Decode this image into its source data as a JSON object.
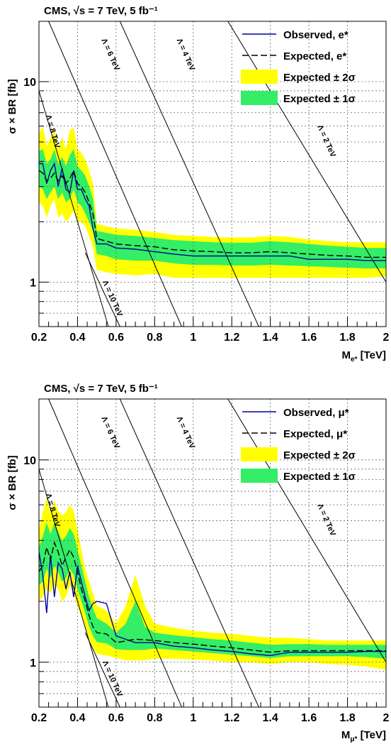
{
  "chart_data": [
    {
      "type": "line",
      "title": "CMS, √s = 7 TeV, 5 fb⁻¹",
      "ylabel": "σ × BR  [fb]",
      "xlabel": "M_{e*} [TeV]",
      "xlabel_main": "M",
      "xlabel_sub": "e*",
      "xlabel_tail": " [TeV]",
      "xlim": [
        0.2,
        2.0
      ],
      "ylim": [
        0.6,
        20
      ],
      "yscale": "log",
      "grid": true,
      "legend_position": "top-right",
      "x_ticks": [
        "0.2",
        "0.4",
        "0.6",
        "0.8",
        "1",
        "1.2",
        "1.4",
        "1.6",
        "1.8",
        "2"
      ],
      "y_ticks": [
        "1",
        "10"
      ],
      "series": [
        {
          "name": "Observed, e*",
          "color": "#000099",
          "x": [
            0.2,
            0.22,
            0.24,
            0.26,
            0.28,
            0.3,
            0.32,
            0.34,
            0.36,
            0.38,
            0.4,
            0.42,
            0.44,
            0.46,
            0.48,
            0.5,
            0.55,
            0.6,
            0.7,
            0.8,
            0.9,
            1.0,
            1.1,
            1.2,
            1.3,
            1.4,
            1.5,
            1.6,
            1.7,
            1.8,
            1.9,
            2.0
          ],
          "y": [
            3.9,
            3.9,
            3.1,
            3.6,
            3.9,
            3.0,
            3.7,
            2.9,
            2.8,
            3.6,
            2.9,
            2.9,
            2.6,
            2.4,
            1.85,
            1.55,
            1.55,
            1.48,
            1.46,
            1.42,
            1.38,
            1.35,
            1.35,
            1.35,
            1.35,
            1.35,
            1.35,
            1.3,
            1.3,
            1.3,
            1.28,
            1.28
          ]
        },
        {
          "name": "Expected, e*",
          "color": "#000000",
          "x": [
            0.2,
            0.22,
            0.24,
            0.26,
            0.28,
            0.3,
            0.32,
            0.34,
            0.36,
            0.38,
            0.4,
            0.42,
            0.44,
            0.46,
            0.48,
            0.5,
            0.55,
            0.6,
            0.7,
            0.8,
            0.9,
            1.0,
            1.1,
            1.2,
            1.3,
            1.4,
            1.5,
            1.6,
            1.7,
            1.8,
            1.9,
            2.0
          ],
          "y": [
            3.6,
            3.5,
            3.2,
            3.3,
            3.5,
            3.2,
            3.4,
            3.1,
            3.3,
            3.6,
            3.1,
            3.0,
            2.8,
            2.5,
            2.2,
            1.65,
            1.6,
            1.55,
            1.52,
            1.5,
            1.45,
            1.43,
            1.42,
            1.4,
            1.4,
            1.42,
            1.4,
            1.38,
            1.36,
            1.35,
            1.33,
            1.33
          ]
        },
        {
          "name": "Expected ± 2σ",
          "color": "#ffff00",
          "x": [
            0.2,
            0.22,
            0.24,
            0.26,
            0.28,
            0.3,
            0.32,
            0.34,
            0.36,
            0.38,
            0.4,
            0.42,
            0.44,
            0.46,
            0.48,
            0.5,
            0.55,
            0.6,
            0.7,
            0.8,
            0.9,
            1.0,
            1.1,
            1.2,
            1.3,
            1.4,
            1.5,
            1.6,
            1.7,
            1.8,
            1.9,
            2.0
          ],
          "low": [
            2.5,
            2.4,
            2.1,
            2.4,
            2.6,
            2.1,
            2.2,
            2.0,
            2.1,
            2.3,
            2.0,
            2.0,
            1.9,
            1.7,
            1.5,
            1.15,
            1.12,
            1.1,
            1.08,
            1.1,
            1.05,
            1.05,
            1.05,
            1.05,
            1.05,
            1.05,
            1.05,
            1.05,
            1.05,
            1.05,
            1.05,
            1.07
          ],
          "high": [
            5.5,
            6.0,
            4.8,
            5.2,
            5.8,
            4.6,
            5.3,
            4.6,
            5.7,
            5.9,
            4.6,
            4.4,
            4.1,
            3.6,
            3.1,
            1.95,
            1.9,
            1.85,
            1.82,
            1.78,
            1.72,
            1.7,
            1.68,
            1.67,
            1.67,
            1.7,
            1.68,
            1.63,
            1.6,
            1.58,
            1.58,
            1.58
          ]
        },
        {
          "name": "Expected ± 1σ",
          "color": "#33ee66",
          "x": [
            0.2,
            0.22,
            0.24,
            0.26,
            0.28,
            0.3,
            0.32,
            0.34,
            0.36,
            0.38,
            0.4,
            0.42,
            0.44,
            0.46,
            0.48,
            0.5,
            0.55,
            0.6,
            0.7,
            0.8,
            0.9,
            1.0,
            1.1,
            1.2,
            1.3,
            1.4,
            1.5,
            1.6,
            1.7,
            1.8,
            1.9,
            2.0
          ],
          "low": [
            3.0,
            2.9,
            2.6,
            2.8,
            3.0,
            2.6,
            2.8,
            2.5,
            2.6,
            2.9,
            2.5,
            2.4,
            2.2,
            2.0,
            1.8,
            1.38,
            1.35,
            1.3,
            1.28,
            1.28,
            1.24,
            1.22,
            1.22,
            1.21,
            1.21,
            1.22,
            1.21,
            1.2,
            1.19,
            1.18,
            1.17,
            1.17
          ],
          "high": [
            4.5,
            4.6,
            3.9,
            4.1,
            4.6,
            3.9,
            4.2,
            3.8,
            4.3,
            4.6,
            3.8,
            3.6,
            3.4,
            3.0,
            2.6,
            1.8,
            1.76,
            1.72,
            1.7,
            1.66,
            1.62,
            1.6,
            1.58,
            1.57,
            1.57,
            1.6,
            1.58,
            1.55,
            1.52,
            1.5,
            1.48,
            1.48
          ]
        }
      ],
      "contours": [
        {
          "label": "Λ = 8 TeV",
          "x": [
            0.2,
            0.56
          ],
          "y": [
            9.0,
            0.6
          ]
        },
        {
          "label": "Λ = 6 TeV",
          "x": [
            0.25,
            0.94
          ],
          "y": [
            20,
            0.6
          ]
        },
        {
          "label": "Λ = 4 TeV",
          "x": [
            0.62,
            1.34
          ],
          "y": [
            20,
            0.6
          ]
        },
        {
          "label": "Λ = 2 TeV",
          "x": [
            1.18,
            2.0
          ],
          "y": [
            20,
            1.0
          ]
        },
        {
          "label": "Λ = 10 TeV",
          "x": [
            0.44,
            0.62
          ],
          "y": [
            1.4,
            0.6
          ]
        }
      ]
    },
    {
      "type": "line",
      "title": "CMS, √s = 7 TeV, 5 fb⁻¹",
      "ylabel": "σ × BR  [fb]",
      "xlabel": "M_{μ*} [TeV]",
      "xlabel_main": "M",
      "xlabel_sub": "μ*",
      "xlabel_tail": " [TeV]",
      "xlim": [
        0.2,
        2.0
      ],
      "ylim": [
        0.6,
        20
      ],
      "yscale": "log",
      "grid": true,
      "legend_position": "top-right",
      "x_ticks": [
        "0.2",
        "0.4",
        "0.6",
        "0.8",
        "1",
        "1.2",
        "1.4",
        "1.6",
        "1.8",
        "2"
      ],
      "y_ticks": [
        "1",
        "10"
      ],
      "series": [
        {
          "name": "Observed, μ*",
          "color": "#000099",
          "x": [
            0.2,
            0.22,
            0.24,
            0.26,
            0.28,
            0.3,
            0.32,
            0.34,
            0.36,
            0.38,
            0.4,
            0.42,
            0.44,
            0.46,
            0.48,
            0.5,
            0.55,
            0.6,
            0.7,
            0.8,
            0.9,
            1.0,
            1.1,
            1.2,
            1.3,
            1.4,
            1.5,
            1.6,
            1.7,
            1.8,
            1.9,
            2.0
          ],
          "y": [
            3.5,
            2.7,
            1.75,
            3.4,
            2.1,
            3.1,
            2.9,
            2.3,
            2.8,
            2.1,
            3.0,
            2.5,
            2.1,
            1.8,
            1.95,
            2.0,
            1.95,
            1.35,
            1.25,
            1.25,
            1.2,
            1.18,
            1.15,
            1.13,
            1.1,
            1.08,
            1.12,
            1.12,
            1.12,
            1.12,
            1.13,
            1.13
          ]
        },
        {
          "name": "Expected, μ*",
          "color": "#000000",
          "x": [
            0.2,
            0.22,
            0.24,
            0.26,
            0.28,
            0.3,
            0.32,
            0.34,
            0.36,
            0.38,
            0.4,
            0.42,
            0.44,
            0.46,
            0.48,
            0.5,
            0.55,
            0.6,
            0.7,
            0.8,
            0.9,
            1.0,
            1.1,
            1.2,
            1.3,
            1.4,
            1.5,
            1.6,
            1.7,
            1.8,
            1.9,
            2.0
          ],
          "y": [
            2.8,
            3.0,
            3.7,
            3.2,
            3.9,
            3.5,
            3.0,
            3.3,
            3.6,
            3.3,
            2.8,
            2.3,
            2.0,
            1.7,
            1.5,
            1.4,
            1.38,
            1.25,
            1.3,
            1.28,
            1.25,
            1.23,
            1.2,
            1.18,
            1.15,
            1.12,
            1.14,
            1.14,
            1.14,
            1.14,
            1.14,
            1.14
          ]
        },
        {
          "name": "Expected ± 2σ",
          "color": "#ffff00",
          "x": [
            0.2,
            0.22,
            0.24,
            0.26,
            0.28,
            0.3,
            0.32,
            0.34,
            0.36,
            0.38,
            0.4,
            0.42,
            0.44,
            0.46,
            0.48,
            0.5,
            0.55,
            0.6,
            0.65,
            0.7,
            0.75,
            0.8,
            0.9,
            1.0,
            1.1,
            1.2,
            1.3,
            1.4,
            1.5,
            1.6,
            1.7,
            1.8,
            1.9,
            2.0
          ],
          "low": [
            2.0,
            2.1,
            2.3,
            2.2,
            2.4,
            2.3,
            2.0,
            2.1,
            2.4,
            2.2,
            1.9,
            1.7,
            1.5,
            1.3,
            1.18,
            1.1,
            1.08,
            1.05,
            1.02,
            1.02,
            1.02,
            1.04,
            1.04,
            1.03,
            1.02,
            1.0,
            1.0,
            0.98,
            1.0,
            1.0,
            0.98,
            0.97,
            0.95,
            0.92
          ],
          "high": [
            4.5,
            5.5,
            6.5,
            5.5,
            6.3,
            5.6,
            5.3,
            5.5,
            6.0,
            5.6,
            4.5,
            3.6,
            2.9,
            2.5,
            2.2,
            1.9,
            1.8,
            1.55,
            1.9,
            2.7,
            1.9,
            1.55,
            1.48,
            1.43,
            1.4,
            1.38,
            1.35,
            1.32,
            1.32,
            1.3,
            1.28,
            1.28,
            1.28,
            1.28
          ]
        },
        {
          "name": "Expected ± 1σ",
          "color": "#33ee66",
          "x": [
            0.2,
            0.22,
            0.24,
            0.26,
            0.28,
            0.3,
            0.32,
            0.34,
            0.36,
            0.38,
            0.4,
            0.42,
            0.44,
            0.46,
            0.48,
            0.5,
            0.55,
            0.6,
            0.65,
            0.7,
            0.75,
            0.8,
            0.9,
            1.0,
            1.1,
            1.2,
            1.3,
            1.4,
            1.5,
            1.6,
            1.7,
            1.8,
            1.9,
            2.0
          ],
          "low": [
            2.4,
            2.5,
            2.9,
            2.6,
            3.0,
            2.8,
            2.5,
            2.6,
            2.9,
            2.7,
            2.3,
            2.0,
            1.75,
            1.5,
            1.35,
            1.26,
            1.24,
            1.16,
            1.15,
            1.15,
            1.15,
            1.17,
            1.15,
            1.13,
            1.11,
            1.09,
            1.07,
            1.05,
            1.07,
            1.07,
            1.07,
            1.07,
            1.06,
            1.04
          ],
          "high": [
            3.7,
            4.2,
            4.9,
            4.3,
            4.9,
            4.4,
            4.0,
            4.2,
            4.6,
            4.3,
            3.6,
            3.0,
            2.5,
            2.1,
            1.85,
            1.65,
            1.55,
            1.4,
            1.55,
            2.0,
            1.5,
            1.4,
            1.36,
            1.33,
            1.3,
            1.28,
            1.25,
            1.22,
            1.23,
            1.23,
            1.22,
            1.22,
            1.22,
            1.22
          ]
        }
      ],
      "contours": [
        {
          "label": "Λ = 8 TeV",
          "x": [
            0.2,
            0.56
          ],
          "y": [
            9.0,
            0.6
          ]
        },
        {
          "label": "Λ = 6 TeV",
          "x": [
            0.25,
            0.94
          ],
          "y": [
            20,
            0.6
          ]
        },
        {
          "label": "Λ = 4 TeV",
          "x": [
            0.62,
            1.34
          ],
          "y": [
            20,
            0.6
          ]
        },
        {
          "label": "Λ = 2 TeV",
          "x": [
            1.18,
            2.0
          ],
          "y": [
            20,
            1.0
          ]
        },
        {
          "label": "Λ = 10 TeV",
          "x": [
            0.44,
            0.62
          ],
          "y": [
            1.4,
            0.6
          ]
        }
      ]
    }
  ]
}
